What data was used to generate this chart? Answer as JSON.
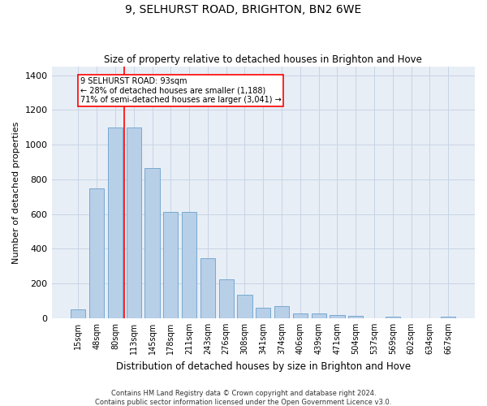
{
  "title": "9, SELHURST ROAD, BRIGHTON, BN2 6WE",
  "subtitle": "Size of property relative to detached houses in Brighton and Hove",
  "xlabel": "Distribution of detached houses by size in Brighton and Hove",
  "ylabel": "Number of detached properties",
  "footer_line1": "Contains HM Land Registry data © Crown copyright and database right 2024.",
  "footer_line2": "Contains public sector information licensed under the Open Government Licence v3.0.",
  "categories": [
    "15sqm",
    "48sqm",
    "80sqm",
    "113sqm",
    "145sqm",
    "178sqm",
    "211sqm",
    "243sqm",
    "276sqm",
    "308sqm",
    "341sqm",
    "374sqm",
    "406sqm",
    "439sqm",
    "471sqm",
    "504sqm",
    "537sqm",
    "569sqm",
    "602sqm",
    "634sqm",
    "667sqm"
  ],
  "values": [
    50,
    750,
    1100,
    1100,
    865,
    615,
    615,
    345,
    225,
    135,
    60,
    70,
    30,
    30,
    20,
    13,
    0,
    10,
    0,
    0,
    10
  ],
  "bar_color": "#b8cfe8",
  "bar_edge_color": "#6aa0cc",
  "grid_color": "#c8d4e4",
  "background_color": "#e8eef6",
  "redline_label": "9 SELHURST ROAD: 93sqm",
  "annotation_line1": "← 28% of detached houses are smaller (1,188)",
  "annotation_line2": "71% of semi-detached houses are larger (3,041) →",
  "red_line_x": 2.5,
  "ylim": [
    0,
    1450
  ],
  "yticks": [
    0,
    200,
    400,
    600,
    800,
    1000,
    1200,
    1400
  ]
}
